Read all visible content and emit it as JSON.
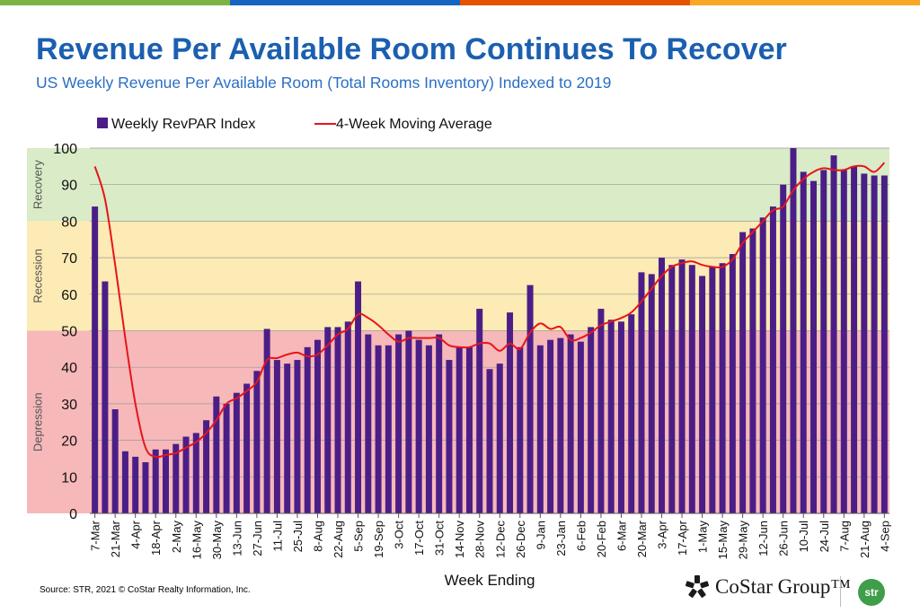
{
  "header": {
    "title": "Revenue Per Available Room Continues To Recover",
    "subtitle": "US Weekly Revenue Per Available Room (Total Rooms Inventory) Indexed to 2019"
  },
  "footer": {
    "source": "Source: STR, 2021 © CoStar Realty Information, Inc.",
    "costar_logo_text": "CoStar Group™",
    "str_logo_text": "str"
  },
  "colors": {
    "top_bar": [
      "#7cb342",
      "#1565c0",
      "#e65100",
      "#f9a825"
    ],
    "bar": "#4b1e87",
    "line": "#e8141b",
    "recovery_zone": "#d9ebc7",
    "recession_zone": "#fcebb4",
    "depression_zone": "#f6b8b9"
  },
  "chart_data": {
    "type": "bar",
    "xlabel": "Week Ending",
    "ylabel": "",
    "ylim": [
      0,
      100
    ],
    "y_ticks": [
      0,
      10,
      20,
      30,
      40,
      50,
      60,
      70,
      80,
      90,
      100
    ],
    "grid": true,
    "legend_position": "top-left",
    "zones": [
      {
        "name": "Recovery",
        "from": 80,
        "to": 100
      },
      {
        "name": "Recession",
        "from": 50,
        "to": 80
      },
      {
        "name": "Depression",
        "from": 0,
        "to": 50
      }
    ],
    "x_tick_labels": [
      "7-Mar",
      "21-Mar",
      "4-Apr",
      "18-Apr",
      "2-May",
      "16-May",
      "30-May",
      "13-Jun",
      "27-Jun",
      "11-Jul",
      "25-Jul",
      "8-Aug",
      "22-Aug",
      "5-Sep",
      "19-Sep",
      "3-Oct",
      "17-Oct",
      "31-Oct",
      "14-Nov",
      "28-Nov",
      "12-Dec",
      "26-Dec",
      "9-Jan",
      "23-Jan",
      "6-Feb",
      "20-Feb",
      "6-Mar",
      "20-Mar",
      "3-Apr",
      "17-Apr",
      "1-May",
      "15-May",
      "29-May",
      "12-Jun",
      "26-Jun",
      "10-Jul",
      "24-Jul",
      "7-Aug",
      "21-Aug",
      "4-Sep"
    ],
    "series": [
      {
        "name": "Weekly RevPAR Index",
        "type": "bar",
        "values": [
          84,
          63.5,
          28.5,
          17,
          15.5,
          14,
          17.5,
          17.5,
          19,
          21,
          22,
          25.5,
          32,
          30,
          33,
          35.5,
          39,
          50.5,
          42,
          41,
          42,
          45.5,
          47.5,
          51,
          51,
          52.5,
          63.5,
          49,
          46,
          46,
          49,
          50,
          47.5,
          46,
          49,
          42,
          45.5,
          45.5,
          56,
          39.5,
          41,
          55,
          45.5,
          62.5,
          46,
          47.5,
          48,
          49,
          47,
          51,
          56,
          53,
          52.5,
          54.5,
          66,
          65.5,
          70,
          68,
          69.5,
          68,
          65,
          67.5,
          68.5,
          71,
          77,
          78,
          81,
          84,
          90,
          100,
          93.5,
          91,
          94,
          98,
          94,
          95,
          93,
          92.5,
          92.5
        ]
      },
      {
        "name": "4-Week Moving Average",
        "type": "line",
        "values": [
          95,
          86,
          68,
          48,
          30,
          18,
          15.5,
          16,
          16.5,
          18,
          19.5,
          22,
          25.5,
          30,
          31.5,
          33.5,
          36,
          42,
          42.5,
          43.5,
          44,
          43,
          43.5,
          46,
          49,
          50.5,
          54.5,
          53.5,
          51.5,
          49,
          47,
          48,
          48,
          48,
          48,
          46,
          45.5,
          45.5,
          46.5,
          46.5,
          44.5,
          46.5,
          45,
          49.5,
          52,
          50.5,
          51,
          47.5,
          48,
          49.5,
          51.5,
          52.5,
          53.5,
          55,
          58,
          61.5,
          65,
          67.5,
          68.5,
          69,
          68,
          67.5,
          67.5,
          69.5,
          74,
          77,
          80,
          83,
          84,
          88.5,
          91.5,
          93.5,
          94.5,
          94,
          94,
          95,
          95,
          93.5,
          96
        ]
      }
    ]
  }
}
